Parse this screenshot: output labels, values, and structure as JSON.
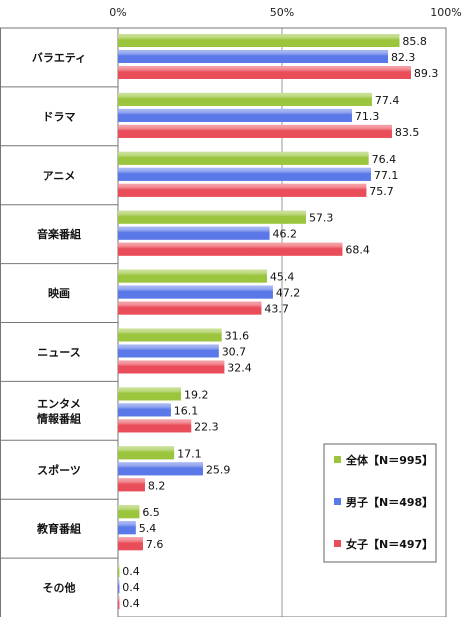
{
  "chart_data": {
    "type": "bar",
    "orientation": "horizontal",
    "xlim": [
      0,
      100
    ],
    "x_ticks": [
      "0%",
      "50%",
      "100%"
    ],
    "categories": [
      [
        "バラエティ"
      ],
      [
        "ドラマ"
      ],
      [
        "アニメ"
      ],
      [
        "音楽番組"
      ],
      [
        "映画"
      ],
      [
        "ニュース"
      ],
      [
        "エンタメ",
        "情報番組"
      ],
      [
        "スポーツ"
      ],
      [
        "教育番組"
      ],
      [
        "その他"
      ]
    ],
    "series": [
      {
        "name": "全体【N＝995】",
        "color": "#9bc53d",
        "values": [
          85.8,
          77.4,
          76.4,
          57.3,
          45.4,
          31.6,
          19.2,
          17.1,
          6.5,
          0.4
        ]
      },
      {
        "name": "男子【N＝498】",
        "color": "#5a78e8",
        "values": [
          82.3,
          71.3,
          77.1,
          46.2,
          47.2,
          30.7,
          16.1,
          25.9,
          5.4,
          0.4
        ]
      },
      {
        "name": "女子【N＝497】",
        "color": "#ea4d5a",
        "values": [
          89.3,
          83.5,
          75.7,
          68.4,
          43.7,
          32.4,
          22.3,
          8.2,
          7.6,
          0.4
        ]
      }
    ],
    "value_labels": [
      [
        "85.8",
        "82.3",
        "89.3"
      ],
      [
        "77.4",
        "71.3",
        "83.5"
      ],
      [
        "76.4",
        "77.1",
        "75.7"
      ],
      [
        "57.3",
        "46.2",
        "68.4"
      ],
      [
        "45.4",
        "47.2",
        "43.7"
      ],
      [
        "31.6",
        "30.7",
        "32.4"
      ],
      [
        "19.2",
        "16.1",
        "22.3"
      ],
      [
        "17.1",
        "25.9",
        "8.2"
      ],
      [
        "6.5",
        "5.4",
        "7.6"
      ],
      [
        "0.4",
        "0.4",
        "0.4"
      ]
    ],
    "legend_placement": "bottom-right",
    "grid": true
  }
}
